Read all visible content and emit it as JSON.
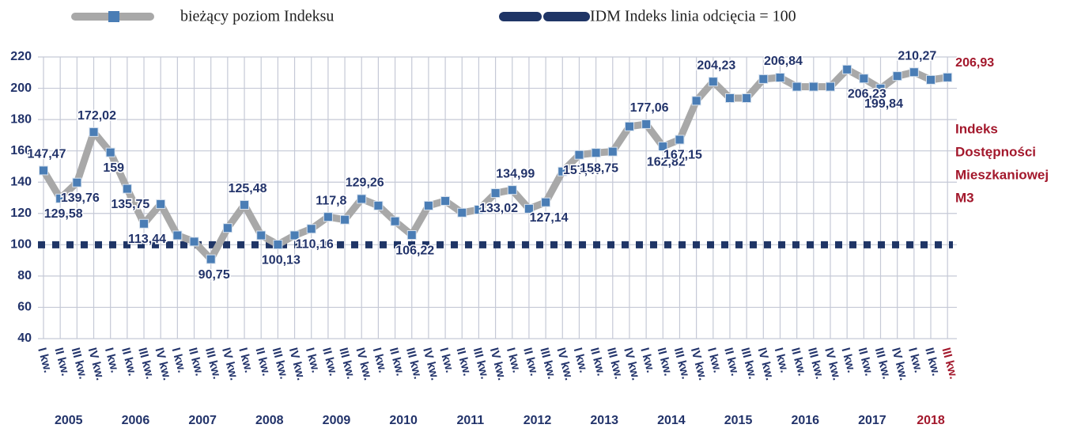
{
  "chart_data": {
    "type": "line",
    "categories": [
      "I kw.",
      "II kw.",
      "III kw.",
      "IV kw.",
      "I kw.",
      "II kw.",
      "III kw.",
      "IV kw.",
      "I kw.",
      "II kw.",
      "III kw.",
      "IV kw.",
      "I kw.",
      "II kw.",
      "III kw.",
      "IV kw.",
      "I kw.",
      "II kw.",
      "III kw.",
      "IV kw.",
      "I kw.",
      "II kw.",
      "III kw.",
      "IV kw.",
      "I kw.",
      "II kw.",
      "III kw.",
      "IV kw.",
      "I kw.",
      "II kw.",
      "III kw.",
      "IV kw.",
      "I kw.",
      "II kw.",
      "III kw.",
      "IV kw.",
      "I kw.",
      "II kw.",
      "III kw.",
      "IV kw.",
      "I kw.",
      "II kw.",
      "III kw.",
      "IV kw.",
      "I kw.",
      "II kw.",
      "III kw.",
      "IV kw.",
      "I kw.",
      "II kw.",
      "III kw.",
      "IV kw.",
      "I kw.",
      "II kw.",
      "III kw."
    ],
    "years": [
      "2005",
      "2006",
      "2007",
      "2008",
      "2009",
      "2010",
      "2011",
      "2012",
      "2013",
      "2014",
      "2015",
      "2016",
      "2017",
      "2018"
    ],
    "series": [
      {
        "name": "bieżący poziom Indeksu",
        "color": "#a8a8a8",
        "marker_color": "#4a7db5",
        "values": [
          147.47,
          129.58,
          139.76,
          172.02,
          159,
          135.75,
          113.44,
          126,
          106,
          102,
          90.75,
          110.7,
          125.48,
          106,
          100.13,
          106,
          110.16,
          117.8,
          116,
          129.26,
          125,
          115,
          106.22,
          125,
          128,
          120.5,
          122.4,
          133.02,
          134.99,
          123,
          127.14,
          146.8,
          157.47,
          158.75,
          159.5,
          175.6,
          177.06,
          162.82,
          167.15,
          192,
          204.23,
          193.7,
          193.7,
          205.9,
          206.84,
          201,
          201,
          201,
          212,
          206.23,
          199.84,
          207.8,
          210.27,
          205.4,
          206.93
        ],
        "value_labels": [
          "147,47",
          "129,58",
          "139,76",
          "172,02",
          "159",
          "135,75",
          "113,44",
          null,
          null,
          null,
          "90,75",
          null,
          "125,48",
          null,
          "100,13",
          null,
          "110,16",
          "117,8",
          null,
          "129,26",
          null,
          null,
          "106,22",
          null,
          null,
          null,
          null,
          "133,02",
          "134,99",
          null,
          "127,14",
          null,
          "157,47",
          "158,75",
          null,
          null,
          "177,06",
          "162,82",
          "167,15",
          null,
          "204,23",
          null,
          null,
          null,
          "206,84",
          null,
          null,
          null,
          null,
          "206,23",
          "199,84",
          null,
          "210,27",
          null,
          "206,93"
        ]
      }
    ],
    "reference_line": {
      "value": 100,
      "label": "IDM Indeks linia odcięcia = 100",
      "color": "#1f3566"
    },
    "annotation_lines": [
      "Indeks",
      "Dostępności",
      "Mieszkaniowej",
      "M3"
    ],
    "highlight_color": "#a3182c",
    "label_color": "#22336a",
    "ylim": [
      40,
      220
    ],
    "yticks": [
      40,
      60,
      80,
      100,
      120,
      140,
      160,
      180,
      200,
      220
    ],
    "grid": true
  }
}
